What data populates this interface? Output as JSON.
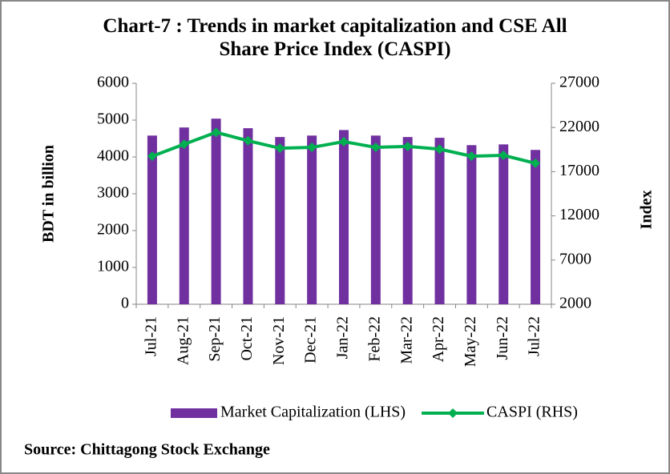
{
  "chart_data": {
    "type": "bar-line",
    "title": "Chart-7 : Trends in market capitalization and CSE All Share Price Index (CASPI)",
    "ylabel": "BDT in billion",
    "y2label": "Index",
    "source": "Source: Chittagong Stock Exchange",
    "categories": [
      "Jul-21",
      "Aug-21",
      "Sep-21",
      "Oct-21",
      "Nov-21",
      "Dec-21",
      "Jan-22",
      "Feb-22",
      "Mar-22",
      "Apr-22",
      "May-22",
      "Jun-22",
      "Jul-22"
    ],
    "series": [
      {
        "name": "Market Capitalization (LHS)",
        "type": "bar",
        "color": "#7030a0",
        "axis": "y",
        "values": [
          4580,
          4800,
          5040,
          4780,
          4540,
          4580,
          4730,
          4580,
          4540,
          4520,
          4320,
          4340,
          4190
        ]
      },
      {
        "name": "CASPI (RHS)",
        "type": "line",
        "color": "#00b050",
        "axis": "y2",
        "values": [
          18750,
          20100,
          21450,
          20500,
          19650,
          19750,
          20400,
          19750,
          19850,
          19550,
          18750,
          18850,
          17950
        ]
      }
    ],
    "ylim": [
      0,
      6000
    ],
    "yticks": [
      0,
      1000,
      2000,
      3000,
      4000,
      5000,
      6000
    ],
    "y2lim": [
      2000,
      27000
    ],
    "y2ticks": [
      2000,
      7000,
      12000,
      17000,
      22000,
      27000
    ],
    "legend": "bottom"
  }
}
